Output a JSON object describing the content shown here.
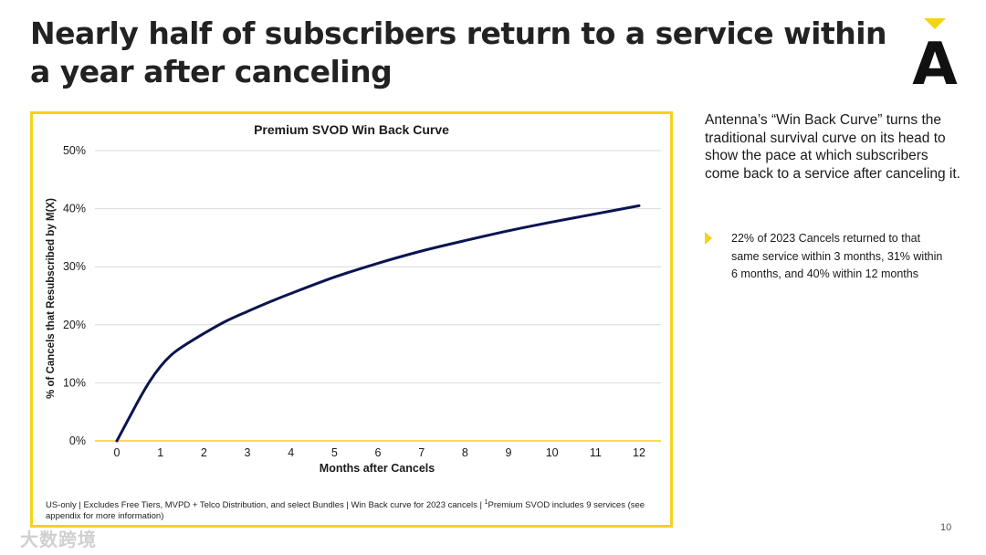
{
  "slide": {
    "title": "Nearly half of subscribers return to a service within a year after canceling",
    "page_number": "10",
    "watermark": "大数跨境",
    "logo_letter": "A"
  },
  "colors": {
    "accent": "#f5d21b",
    "line": "#0b1450",
    "grid": "#d9d9d9",
    "text": "#1a1a1a"
  },
  "sidebar": {
    "intro": "Antenna’s “Win Back Curve” turns the traditional survival curve on its head to show the pace at which subscribers come back to a service after canceling it.",
    "bullets": [
      "22% of 2023 Cancels returned to that same service within 3 months, 31% within 6 months, and 40% within 12 months"
    ]
  },
  "footnote": {
    "main": "US-only | Excludes Free Tiers, MVPD + Telco Distribution, and select Bundles | Win Back curve for 2023 cancels | ",
    "sup": "1",
    "tail": "Premium SVOD includes 9 services (see appendix for more information)"
  },
  "chart_data": {
    "type": "line",
    "title": "Premium SVOD Win Back Curve",
    "xlabel": "Months after Cancels",
    "ylabel": "% of Cancels that Resubscribed by M(X)",
    "xlim": [
      0,
      12
    ],
    "ylim": [
      0,
      50
    ],
    "x_ticks": [
      0,
      1,
      2,
      3,
      4,
      5,
      6,
      7,
      8,
      9,
      10,
      11,
      12
    ],
    "y_ticks": [
      0,
      10,
      20,
      30,
      40,
      50
    ],
    "y_tick_labels": [
      "0%",
      "10%",
      "20%",
      "30%",
      "40%",
      "50%"
    ],
    "grid": true,
    "series": [
      {
        "name": "Premium SVOD",
        "x": [
          0,
          0.25,
          0.5,
          0.75,
          1,
          1.25,
          1.5,
          2,
          2.5,
          3,
          3.5,
          4,
          5,
          6,
          7,
          8,
          9,
          10,
          11,
          12
        ],
        "y": [
          0,
          3.5,
          7,
          10.2,
          12.8,
          14.8,
          16.2,
          18.5,
          20.6,
          22.3,
          23.9,
          25.4,
          28.2,
          30.6,
          32.7,
          34.5,
          36.2,
          37.7,
          39.1,
          40.5
        ]
      }
    ]
  }
}
